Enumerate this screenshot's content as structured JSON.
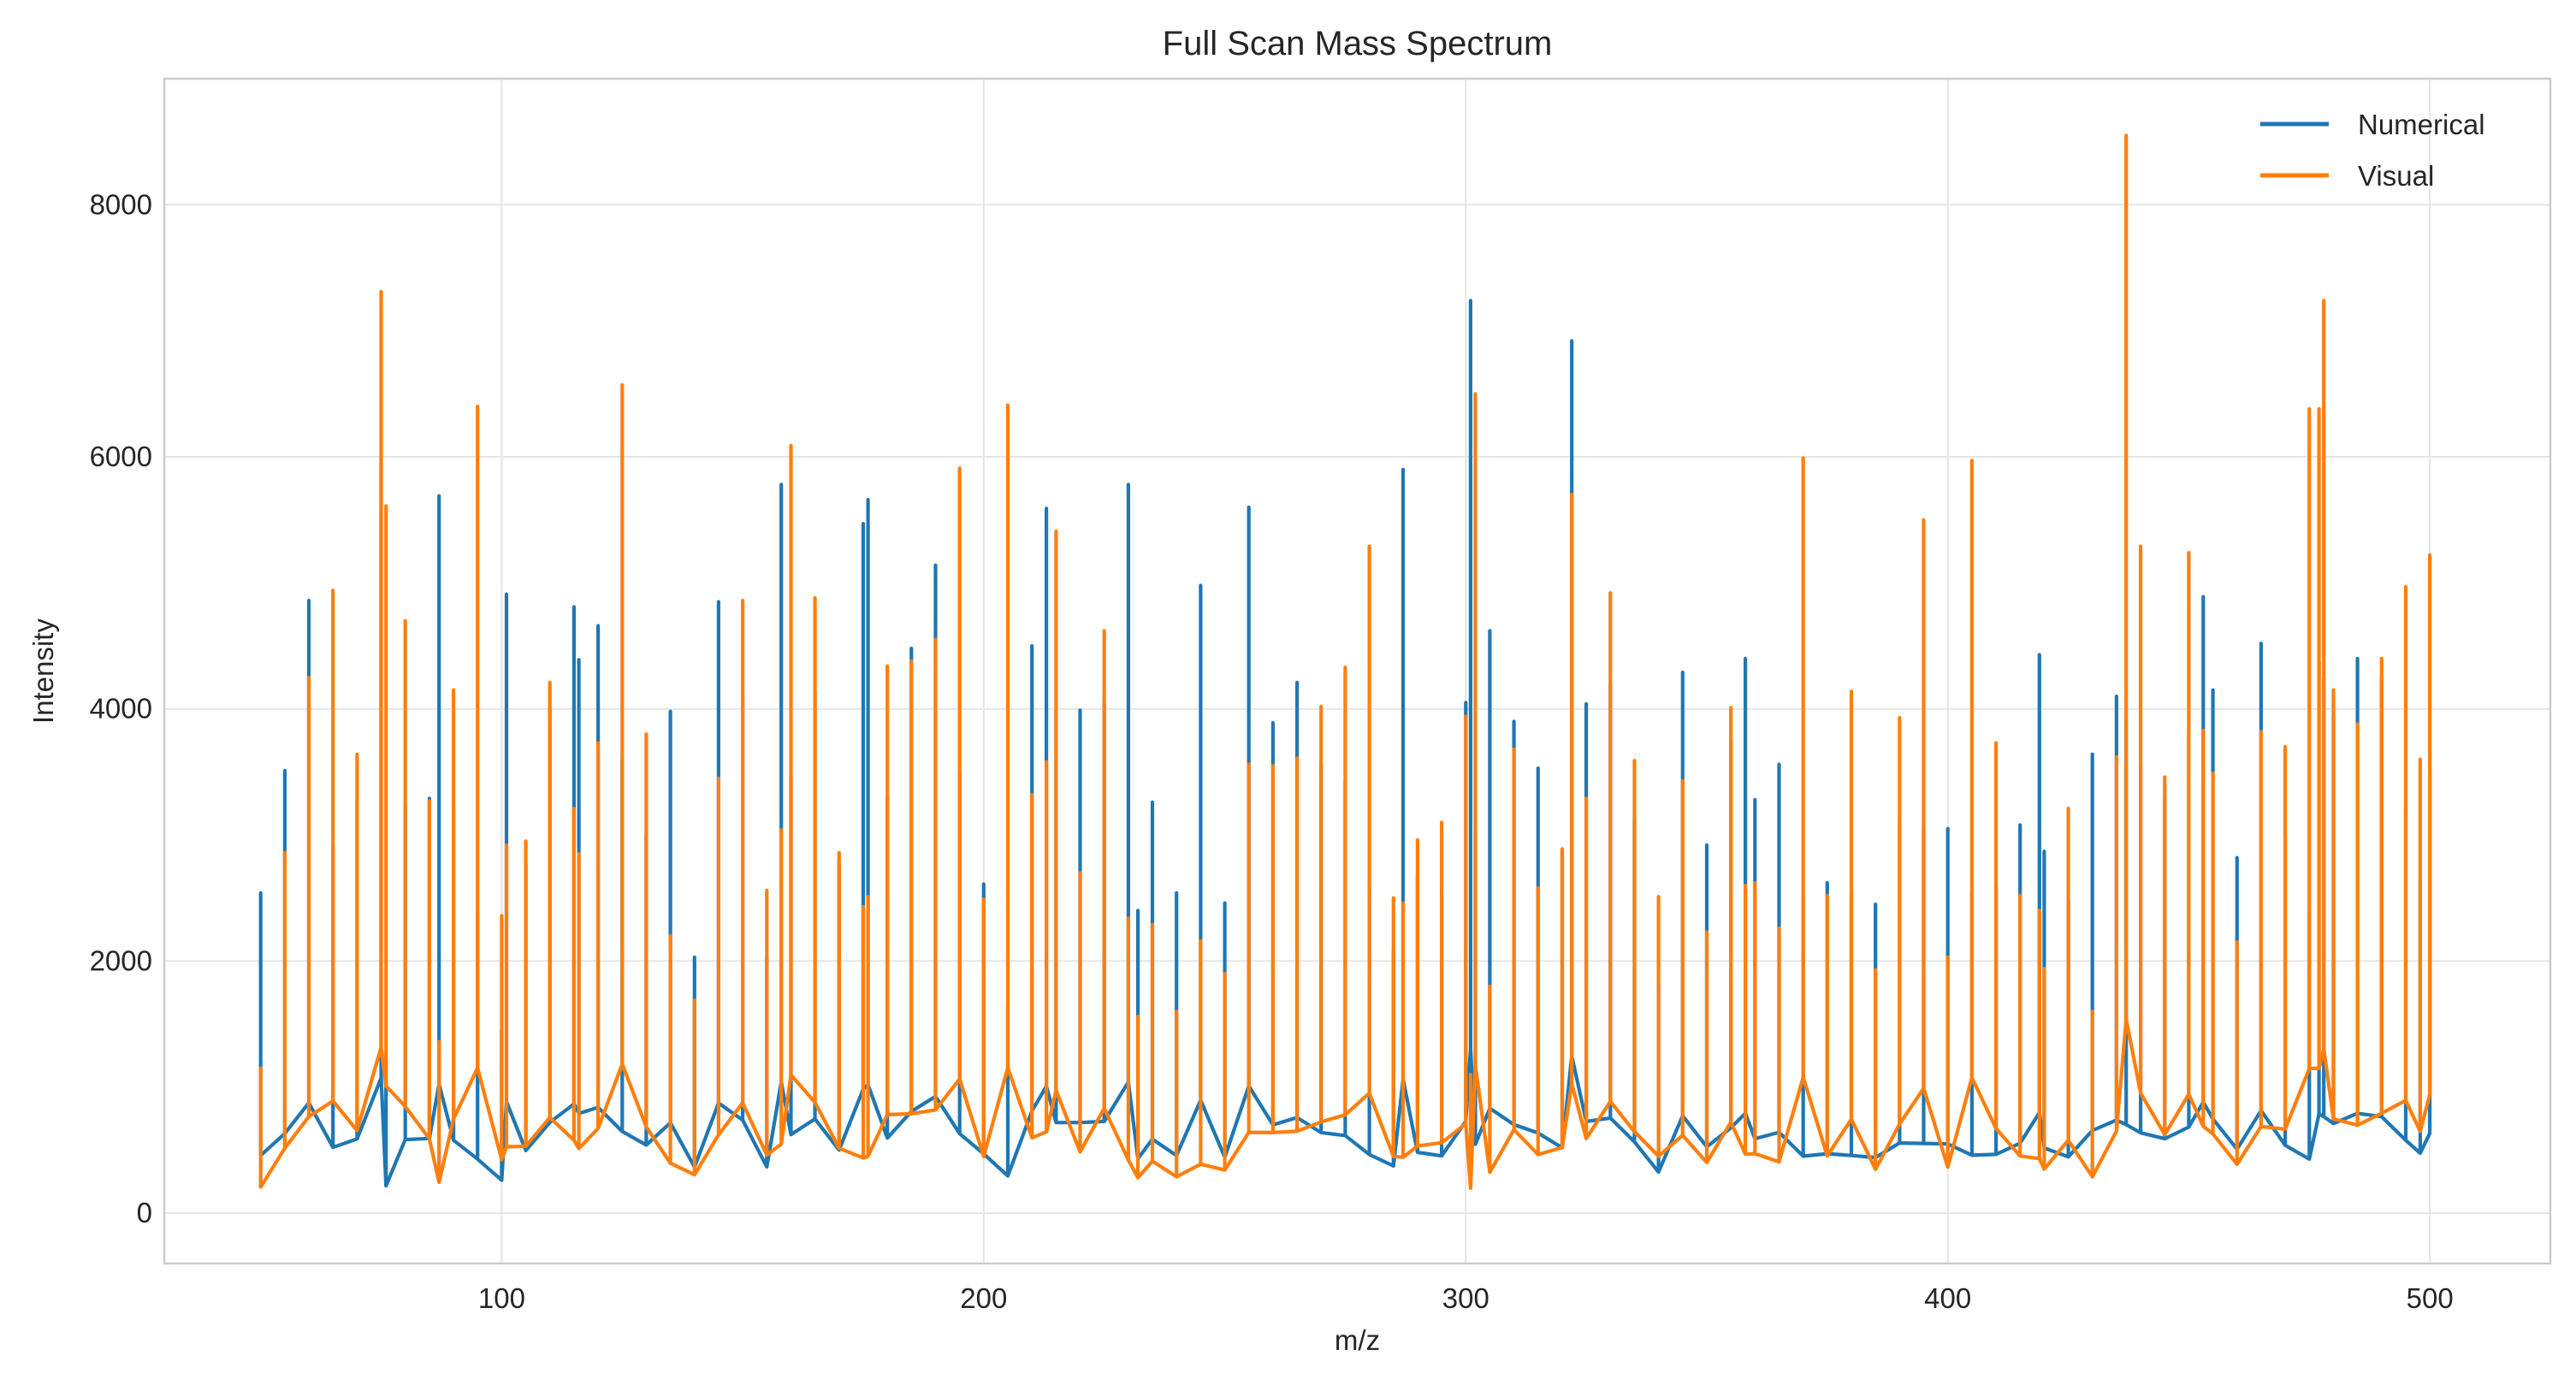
{
  "chart_data": {
    "type": "line",
    "title": "Full Scan Mass Spectrum",
    "xlabel": "m/z",
    "ylabel": "Intensity",
    "xlim": [
      30,
      525
    ],
    "ylim": [
      -400,
      9000
    ],
    "x_ticks": [
      100,
      200,
      300,
      400,
      500
    ],
    "y_ticks": [
      0,
      2000,
      4000,
      6000,
      8000
    ],
    "grid": true,
    "legend_position": "top-right",
    "colors": {
      "Numerical": "#1f77b4",
      "Visual": "#ff7f0e",
      "grid": "#e5e5e5",
      "axes": "#cccccc"
    },
    "sampling_note_removed": true,
    "x": [
      50,
      55,
      60,
      65,
      70,
      75,
      76,
      80,
      85,
      87,
      90,
      95,
      100,
      101,
      105,
      110,
      115,
      116,
      120,
      125,
      130,
      135,
      140,
      145,
      150,
      155,
      158,
      160,
      165,
      170,
      175,
      176,
      180,
      185,
      190,
      195,
      200,
      205,
      210,
      213,
      215,
      220,
      225,
      230,
      232,
      235,
      240,
      245,
      250,
      255,
      260,
      265,
      270,
      275,
      280,
      285,
      287,
      290,
      295,
      300,
      301,
      302,
      305,
      310,
      315,
      320,
      322,
      325,
      330,
      335,
      340,
      345,
      350,
      355,
      358,
      360,
      365,
      370,
      375,
      380,
      385,
      390,
      395,
      400,
      405,
      410,
      415,
      419,
      420,
      425,
      430,
      435,
      437,
      440,
      445,
      450,
      453,
      455,
      460,
      465,
      470,
      475,
      477,
      478,
      480,
      485,
      490,
      495,
      498,
      500
    ],
    "series": [
      {
        "name": "Numerical",
        "values": [
          2540,
          3510,
          4860,
          2900,
          3270,
          5960,
          1200,
          3240,
          3290,
          5690,
          3210,
          2380,
          1450,
          4910,
          2760,
          4000,
          4810,
          4390,
          4660,
          3600,
          3000,
          3980,
          2030,
          4850,
          4100,
          2040,
          5780,
          3460,
          4150,
          2780,
          5470,
          5660,
          3310,
          4480,
          5140,
          3500,
          2610,
          1640,
          4500,
          5590,
          3990,
          3990,
          4040,
          5780,
          2400,
          3260,
          2540,
          4980,
          2460,
          5600,
          3890,
          4210,
          3550,
          3420,
          2580,
          2080,
          5900,
          2680,
          2520,
          4050,
          7240,
          3030,
          4620,
          3900,
          3530,
          2880,
          6920,
          4040,
          4190,
          3140,
          1810,
          4290,
          2920,
          3760,
          4400,
          3280,
          3560,
          2510,
          2620,
          2540,
          2450,
          3090,
          3070,
          3050,
          2550,
          2590,
          3080,
          4430,
          2870,
          2480,
          3640,
          4100,
          3900,
          3540,
          3280,
          3790,
          4890,
          4150,
          2820,
          4520,
          2990,
          2380,
          4370,
          4250,
          3950,
          4400,
          4250,
          3210,
          2640,
          3520
        ]
      },
      {
        "name": "Visual",
        "values": [
          1150,
          2860,
          4250,
          4940,
          3640,
          7310,
          5610,
          4700,
          3270,
          1360,
          4150,
          6400,
          2360,
          2920,
          2950,
          4210,
          3210,
          2850,
          3730,
          6570,
          3800,
          2200,
          1690,
          3450,
          4860,
          2560,
          3040,
          6090,
          4880,
          2860,
          2430,
          2510,
          4340,
          4380,
          4550,
          5910,
          2490,
          6410,
          3320,
          3580,
          5410,
          2700,
          4620,
          2340,
          1560,
          2290,
          1600,
          2160,
          1900,
          3560,
          3550,
          3610,
          4020,
          4330,
          5290,
          2500,
          2460,
          2960,
          3100,
          3940,
          1100,
          6500,
          1800,
          3680,
          2580,
          2890,
          5700,
          3290,
          4920,
          3590,
          2510,
          3430,
          2230,
          4010,
          2600,
          2620,
          2260,
          5990,
          2520,
          4140,
          1930,
          3930,
          5500,
          2030,
          5970,
          3730,
          2520,
          2400,
          1940,
          3210,
          1600,
          3620,
          8550,
          5290,
          3460,
          5240,
          3830,
          3490,
          2150,
          3820,
          3700,
          6380,
          6380,
          7240,
          4150,
          3880,
          4400,
          4970,
          3600,
          5220
        ]
      }
    ]
  }
}
